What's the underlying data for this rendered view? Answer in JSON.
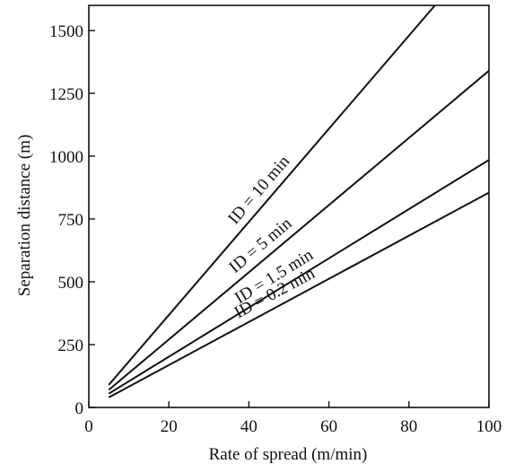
{
  "chart_data": {
    "type": "line",
    "title": "",
    "xlabel": "Rate of spread (m/min)",
    "ylabel": "Separation distance (m)",
    "xlim": [
      0,
      100
    ],
    "ylim": [
      0,
      1600
    ],
    "xticks": [
      "0",
      "20",
      "40",
      "60",
      "80",
      "100"
    ],
    "yticks": [
      "0",
      "250",
      "500",
      "750",
      "1000",
      "1250",
      "1500"
    ],
    "grid": false,
    "legend": "none",
    "line_color": "#111111",
    "series": [
      {
        "name": "ID = 10 min",
        "x": [
          5,
          86.5
        ],
        "y": [
          90,
          1600
        ]
      },
      {
        "name": "ID = 5 min",
        "x": [
          5,
          100
        ],
        "y": [
          70,
          1340
        ]
      },
      {
        "name": "ID = 1.5 min",
        "x": [
          5,
          100
        ],
        "y": [
          55,
          985
        ]
      },
      {
        "name": "ID = 0.2 min",
        "x": [
          5,
          100
        ],
        "y": [
          40,
          855
        ]
      }
    ]
  }
}
